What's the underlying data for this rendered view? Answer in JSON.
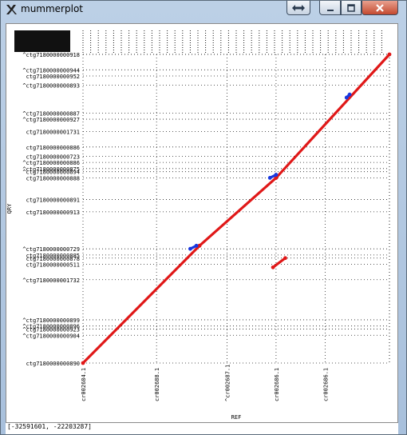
{
  "window": {
    "title": "mummerplot",
    "buttons": {
      "arrows": "double-arrow-icon",
      "minimize": "minimize-icon",
      "maximize": "maximize-icon",
      "close": "close-icon"
    }
  },
  "chart_data": {
    "type": "scatter",
    "xlabel": "REF",
    "ylabel": "QRY",
    "x_ticks": [
      "cr002684.1",
      "cr002688.1",
      "^cr002687.1",
      "cr002686.1",
      "cr002686.1"
    ],
    "y_ticks": [
      "^ctg7180000000918",
      "^ctg7180000000944",
      "ctg7180000000952",
      "^ctg7180000000893",
      "^ctg7180000000887",
      "^ctg7180000000927",
      "ctg7180000001731",
      "ctg7180000000886",
      "ctg7180000000723",
      "^ctg7180000000886",
      "^ctg7180000000875",
      "^ctg7180000000894",
      "ctg7180000000888",
      "ctg7180000000891",
      "ctg7180000000913",
      "^ctg7180000000729",
      "ctg7180000000885",
      "ctg7180000000878",
      "ctg7180000000511",
      "^ctg7180000001732",
      "^ctg7180000000899",
      "^ctg7180000000896",
      "^ctg7180000000923",
      "^ctg7180000000904",
      "ctg7180000000890"
    ],
    "series": [
      {
        "color": "#e01818",
        "segments": [
          [
            [
              0.0,
              0.0
            ],
            [
              0.38,
              0.38
            ]
          ],
          [
            [
              0.38,
              0.38
            ],
            [
              0.63,
              0.6
            ]
          ],
          [
            [
              0.63,
              0.6
            ],
            [
              1.0,
              1.0
            ]
          ],
          [
            [
              0.62,
              0.31
            ],
            [
              0.66,
              0.34
            ]
          ]
        ]
      },
      {
        "color": "#1838e0",
        "segments": [
          [
            [
              0.35,
              0.37
            ],
            [
              0.37,
              0.38
            ]
          ],
          [
            [
              0.61,
              0.6
            ],
            [
              0.63,
              0.61
            ]
          ],
          [
            [
              0.86,
              0.86
            ],
            [
              0.87,
              0.87
            ]
          ]
        ]
      }
    ],
    "grid": true
  },
  "status": {
    "coords": "[-32591601, -22203287]"
  }
}
